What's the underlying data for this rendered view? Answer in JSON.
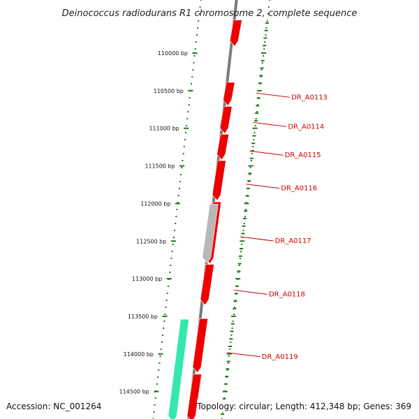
{
  "title": "Deinococcus radiodurans R1 chromosome 2, complete sequence",
  "accession_text": "Accession: NC_001264",
  "summary_text": "Topology: circular; Length: 412,348 bp; Genes: 369",
  "colors": {
    "backbone": "#7a7a7a",
    "ruler": "#1a7a1a",
    "gene_forward": "#ee0000",
    "gene_unknown": "#b8b8b8",
    "gene_rna": "#33e8a8",
    "label": "#cc0000"
  },
  "ruler_labels": [
    {
      "bp": 110000,
      "text": "110000 bp"
    },
    {
      "bp": 110500,
      "text": "110500 bp"
    },
    {
      "bp": 111000,
      "text": "111000 bp"
    },
    {
      "bp": 111500,
      "text": "111500 bp"
    },
    {
      "bp": 112000,
      "text": "112000 bp"
    },
    {
      "bp": 112500,
      "text": "112500 bp"
    },
    {
      "bp": 113000,
      "text": "113000 bp"
    },
    {
      "bp": 113500,
      "text": "113500 bp"
    },
    {
      "bp": 114000,
      "text": "114000 bp"
    },
    {
      "bp": 114500,
      "text": "114500 bp"
    }
  ],
  "gene_labels": [
    {
      "name": "DR_A0113",
      "bp": 110560
    },
    {
      "name": "DR_A0114",
      "bp": 110950
    },
    {
      "name": "DR_A0115",
      "bp": 111330
    },
    {
      "name": "DR_A0116",
      "bp": 111770
    },
    {
      "name": "DR_A0117",
      "bp": 112470
    },
    {
      "name": "DR_A0118",
      "bp": 113180
    },
    {
      "name": "DR_A0119",
      "bp": 114010
    }
  ],
  "features": [
    {
      "start": 109560,
      "end": 109910,
      "type": "gene_forward"
    },
    {
      "start": 110390,
      "end": 110700,
      "type": "gene_forward"
    },
    {
      "start": 110710,
      "end": 111070,
      "type": "gene_forward"
    },
    {
      "start": 111080,
      "end": 111420,
      "type": "gene_forward"
    },
    {
      "start": 111430,
      "end": 111960,
      "type": "gene_forward"
    },
    {
      "start": 111980,
      "end": 112800,
      "type": "gene_forward"
    },
    {
      "start": 112010,
      "end": 112790,
      "type": "gene_unknown"
    },
    {
      "start": 112810,
      "end": 113350,
      "type": "gene_forward"
    },
    {
      "start": 113530,
      "end": 114250,
      "type": "gene_forward"
    },
    {
      "start": 113540,
      "end": 114900,
      "type": "gene_rna"
    },
    {
      "start": 114270,
      "end": 114900,
      "type": "gene_forward"
    }
  ]
}
